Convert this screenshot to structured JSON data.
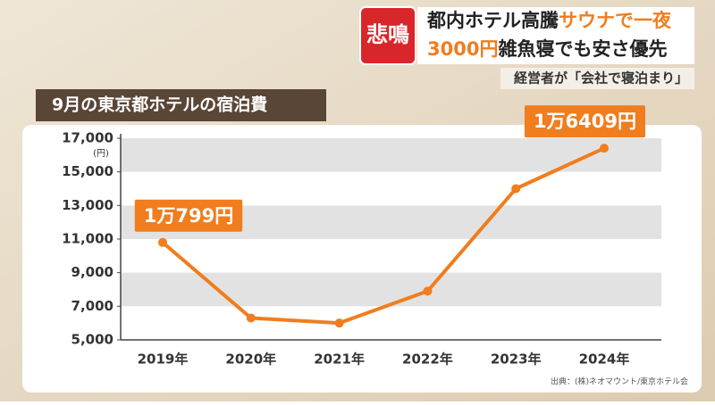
{
  "headline": {
    "tag": "悲鳴",
    "line1a": "都内ホテル高騰",
    "line1b": "サウナで一夜",
    "line2a": "3000円",
    "line2b": "雑魚寝でも安さ優先",
    "sub": "経営者が「会社で寝泊まり」"
  },
  "chart_data": {
    "type": "line",
    "title": "9月の東京都ホテルの宿泊費",
    "y_unit": "(円)",
    "categories": [
      "2019年",
      "2020年",
      "2021年",
      "2022年",
      "2023年",
      "2024年"
    ],
    "series": [
      {
        "name": "宿泊費",
        "color": "#f07d1e",
        "values": [
          10799,
          6300,
          6000,
          7900,
          14000,
          16409
        ],
        "value_labels": [
          "1万799円",
          null,
          null,
          null,
          null,
          "1万6409円"
        ]
      }
    ],
    "ylim": [
      5000,
      17000
    ],
    "yticks": [
      {
        "value": 5000,
        "label": "5,000"
      },
      {
        "value": 7000,
        "label": "7,000"
      },
      {
        "value": 9000,
        "label": "9,000"
      },
      {
        "value": 11000,
        "label": "11,000"
      },
      {
        "value": 13000,
        "label": "13,000"
      },
      {
        "value": 15000,
        "label": "15,000"
      },
      {
        "value": 17000,
        "label": "17,000"
      }
    ],
    "bands": true,
    "source": "出典：(株)ネオマウント/東京ホテル会"
  }
}
